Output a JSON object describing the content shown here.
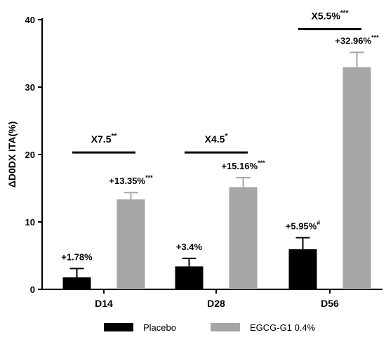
{
  "chart_data": {
    "type": "bar",
    "title": "",
    "xlabel": "",
    "ylabel": "ΔD0DX ITA(%)",
    "ylim": [
      0,
      40
    ],
    "yticks": [
      0,
      10,
      20,
      30,
      40
    ],
    "categories": [
      "D14",
      "D28",
      "D56"
    ],
    "series": [
      {
        "name": "Placebo",
        "color": "#000000",
        "values": [
          1.78,
          3.4,
          5.95
        ],
        "errors": [
          1.3,
          1.2,
          1.7
        ],
        "labels": [
          {
            "main": "+1.78%",
            "sup": ""
          },
          {
            "main": "+3.4%",
            "sup": ""
          },
          {
            "main": "+5.95%",
            "sup": "#"
          }
        ]
      },
      {
        "name": "EGCG-G1 0.4%",
        "color": "#a6a6a8",
        "values": [
          13.35,
          15.16,
          32.96
        ],
        "errors": [
          1.0,
          1.4,
          2.2
        ],
        "labels": [
          {
            "main": "+13.35%",
            "sup": "***"
          },
          {
            "main": "+15.16%",
            "sup": "***"
          },
          {
            "main": "+32.96%",
            "sup": "***"
          }
        ]
      }
    ],
    "comparisons": [
      {
        "main": "X7.5",
        "sup": "**",
        "y": 20.3
      },
      {
        "main": "X4.5",
        "sup": "*",
        "y": 20.3
      },
      {
        "main": "X5.5%",
        "sup": "***",
        "y": 38.6
      }
    ],
    "grid": false,
    "legend_position": "bottom"
  }
}
